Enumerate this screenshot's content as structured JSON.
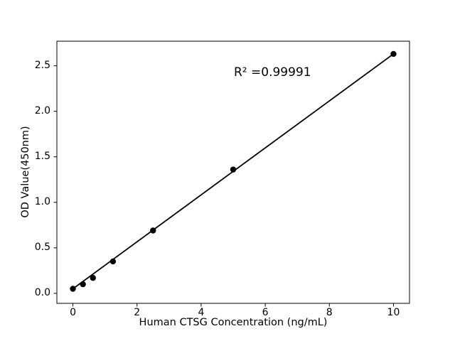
{
  "figure": {
    "background_color": "#ffffff",
    "foreground_color": "#000000"
  },
  "chart_data": {
    "type": "scatter",
    "title": "",
    "xlabel": "Human CTSG Concentration (ng/mL)",
    "ylabel": "OD Value(450nm)",
    "annotation": "R² =0.99991",
    "x": [
      0,
      0.3125,
      0.625,
      1.25,
      2.5,
      5,
      10
    ],
    "y": [
      0.05,
      0.1,
      0.17,
      0.35,
      0.69,
      1.36,
      2.63
    ],
    "fit_line": {
      "x1": 0,
      "y1": 0.05,
      "x2": 10,
      "y2": 2.63
    },
    "xtick_values": [
      0,
      2,
      4,
      6,
      8,
      10
    ],
    "xtick_labels": [
      "0",
      "2",
      "4",
      "6",
      "8",
      "10"
    ],
    "ytick_values": [
      0.0,
      0.5,
      1.0,
      1.5,
      2.0,
      2.5
    ],
    "ytick_labels": [
      "0.0",
      "0.5",
      "1.0",
      "1.5",
      "2.0",
      "2.5"
    ],
    "xlim": [
      -0.5,
      10.5
    ],
    "ylim": [
      -0.11,
      2.77
    ],
    "grid": false,
    "legend": null,
    "line_color": "#000000",
    "marker_color": "#000000",
    "axis_color": "#000000"
  }
}
